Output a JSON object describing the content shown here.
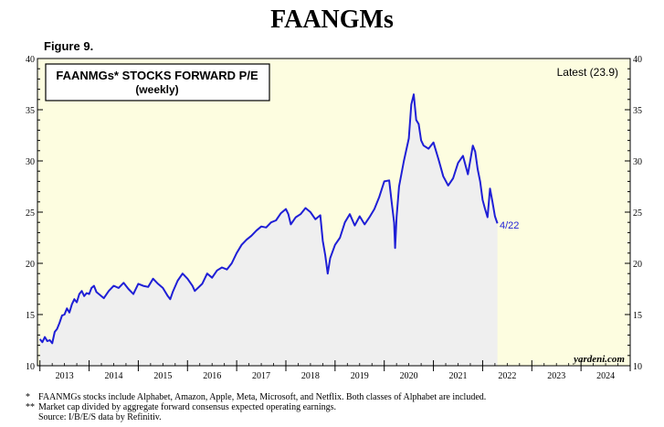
{
  "page_title": "FAANGMs",
  "figure_label": "Figure 9.",
  "footnotes": [
    {
      "marker": "*",
      "text": "FAANMGs stocks include Alphabet, Amazon, Apple, Meta, Microsoft, and Netflix. Both classes of Alphabet are included."
    },
    {
      "marker": "**",
      "text": "Market cap divided by aggregate forward consensus expected operating earnings."
    },
    {
      "marker": "",
      "text": "Source: I/B/E/S data by Refinitiv."
    }
  ],
  "chart_data": {
    "type": "area",
    "title": "FAANMGs* STOCKS FORWARD P/E",
    "subtitle": "(weekly)",
    "latest_label": "Latest (23.9)",
    "end_annotation": "4/22",
    "watermark": "yardeni.com",
    "ylim": [
      10,
      40
    ],
    "yticks": [
      10,
      15,
      20,
      25,
      30,
      35,
      40
    ],
    "xlim": [
      2012.95,
      2025.0
    ],
    "xtick_labels": [
      "2013",
      "2014",
      "2015",
      "2016",
      "2017",
      "2018",
      "2019",
      "2020",
      "2021",
      "2022",
      "2023",
      "2024"
    ],
    "line_color": "#1f1fd6",
    "fill_color": "#efefef",
    "background_color": "#fdfde0",
    "series": [
      {
        "x": [
          2013.0,
          2013.05,
          2013.1,
          2013.15,
          2013.2,
          2013.25,
          2013.3,
          2013.35,
          2013.4,
          2013.45,
          2013.5,
          2013.55,
          2013.6,
          2013.65,
          2013.7,
          2013.75,
          2013.8,
          2013.85,
          2013.9,
          2013.95,
          2014.0,
          2014.05,
          2014.1,
          2014.15,
          2014.2,
          2014.3,
          2014.4,
          2014.5,
          2014.6,
          2014.7,
          2014.8,
          2014.9,
          2015.0,
          2015.1,
          2015.2,
          2015.3,
          2015.4,
          2015.5,
          2015.6,
          2015.65,
          2015.7,
          2015.8,
          2015.9,
          2016.0,
          2016.1,
          2016.15,
          2016.3,
          2016.4,
          2016.5,
          2016.6,
          2016.7,
          2016.8,
          2016.9,
          2017.0,
          2017.1,
          2017.2,
          2017.3,
          2017.4,
          2017.5,
          2017.6,
          2017.7,
          2017.8,
          2017.9,
          2018.0,
          2018.05,
          2018.1,
          2018.2,
          2018.3,
          2018.4,
          2018.5,
          2018.6,
          2018.7,
          2018.75,
          2018.8,
          2018.85,
          2018.9,
          2019.0,
          2019.1,
          2019.2,
          2019.3,
          2019.4,
          2019.5,
          2019.6,
          2019.7,
          2019.8,
          2019.9,
          2020.0,
          2020.1,
          2020.15,
          2020.2,
          2020.22,
          2020.25,
          2020.3,
          2020.4,
          2020.5,
          2020.55,
          2020.6,
          2020.65,
          2020.7,
          2020.75,
          2020.8,
          2020.9,
          2021.0,
          2021.1,
          2021.2,
          2021.3,
          2021.4,
          2021.5,
          2021.6,
          2021.7,
          2021.8,
          2021.85,
          2021.9,
          2021.95,
          2022.0,
          2022.05,
          2022.1,
          2022.15,
          2022.2,
          2022.25,
          2022.3
        ],
        "y": [
          12.6,
          12.3,
          12.8,
          12.4,
          12.5,
          12.2,
          13.3,
          13.6,
          14.2,
          14.9,
          15.0,
          15.6,
          15.2,
          16.0,
          16.5,
          16.2,
          17.0,
          17.3,
          16.8,
          17.1,
          17.0,
          17.6,
          17.8,
          17.2,
          17.0,
          16.6,
          17.3,
          17.8,
          17.6,
          18.1,
          17.5,
          17.0,
          18.0,
          17.8,
          17.7,
          18.5,
          18.0,
          17.6,
          16.8,
          16.5,
          17.2,
          18.3,
          19.0,
          18.5,
          17.8,
          17.3,
          18.0,
          19.0,
          18.6,
          19.3,
          19.6,
          19.4,
          20.0,
          21.0,
          21.8,
          22.3,
          22.7,
          23.2,
          23.6,
          23.5,
          24.0,
          24.2,
          24.9,
          25.3,
          24.8,
          23.8,
          24.5,
          24.8,
          25.4,
          25.0,
          24.3,
          24.7,
          22.2,
          20.8,
          19.0,
          20.5,
          21.8,
          22.5,
          24.0,
          24.8,
          23.7,
          24.6,
          23.8,
          24.5,
          25.3,
          26.5,
          28.0,
          28.1,
          26.0,
          24.0,
          21.5,
          24.5,
          27.5,
          30.0,
          32.2,
          35.5,
          36.5,
          34.0,
          33.6,
          32.0,
          31.5,
          31.2,
          31.8,
          30.2,
          28.5,
          27.6,
          28.3,
          29.8,
          30.5,
          28.7,
          31.5,
          30.9,
          29.2,
          28.0,
          26.2,
          25.3,
          24.5,
          27.3,
          26.0,
          24.6,
          23.9
        ]
      }
    ]
  }
}
